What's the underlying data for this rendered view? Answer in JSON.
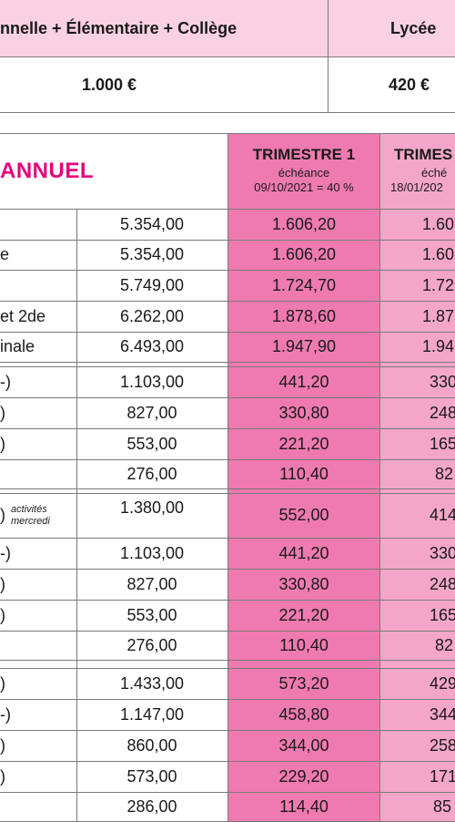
{
  "top": {
    "head_left": "nnelle + Élémentaire + Collège",
    "head_right": "Lycée",
    "value_left": "1.000 €",
    "value_right": "420 €"
  },
  "table": {
    "title": "ANNUEL",
    "t1": {
      "title": "TRIMESTRE 1",
      "sub1": "échéance",
      "sub2": "09/10/2021 = 40 %"
    },
    "t2": {
      "title": "TRIMES",
      "sub1": "éché",
      "sub2": "18/01/202"
    },
    "groups": [
      [
        {
          "label": "",
          "annual": "5.354,00",
          "t1": "1.606,20",
          "t2": "1.60"
        },
        {
          "label": "e",
          "annual": "5.354,00",
          "t1": "1.606,20",
          "t2": "1.60"
        },
        {
          "label": "",
          "annual": "5.749,00",
          "t1": "1.724,70",
          "t2": "1.72"
        },
        {
          "label": "et 2de",
          "annual": "6.262,00",
          "t1": "1.878,60",
          "t2": "1.87"
        },
        {
          "label": "inale",
          "annual": "6.493,00",
          "t1": "1.947,90",
          "t2": "1.94"
        }
      ],
      [
        {
          "label": "-)",
          "annual": "1.103,00",
          "t1": "441,20",
          "t2": "330"
        },
        {
          "label": ")",
          "annual": "827,00",
          "t1": "330,80",
          "t2": "248"
        },
        {
          "label": ")",
          "annual": "553,00",
          "t1": "221,20",
          "t2": "165"
        },
        {
          "label": "",
          "annual": "276,00",
          "t1": "110,40",
          "t2": "82"
        }
      ],
      [
        {
          "label": ")",
          "note1": "activités",
          "note2": "mercredi",
          "annual": "1.380,00",
          "t1": "552,00",
          "t2": "414"
        },
        {
          "label": "-)",
          "annual": "1.103,00",
          "t1": "441,20",
          "t2": "330"
        },
        {
          "label": ")",
          "annual": "827,00",
          "t1": "330,80",
          "t2": "248"
        },
        {
          "label": ")",
          "annual": "553,00",
          "t1": "221,20",
          "t2": "165"
        },
        {
          "label": "",
          "annual": "276,00",
          "t1": "110,40",
          "t2": "82"
        }
      ],
      [
        {
          "label": ")",
          "annual": "1.433,00",
          "t1": "573,20",
          "t2": "429"
        },
        {
          "label": "-)",
          "annual": "1.147,00",
          "t1": "458,80",
          "t2": "344"
        },
        {
          "label": ")",
          "annual": "860,00",
          "t1": "344,00",
          "t2": "258"
        },
        {
          "label": ")",
          "annual": "573,00",
          "t1": "229,20",
          "t2": "171"
        },
        {
          "label": "",
          "annual": "286,00",
          "t1": "114,40",
          "t2": "85"
        }
      ]
    ]
  }
}
